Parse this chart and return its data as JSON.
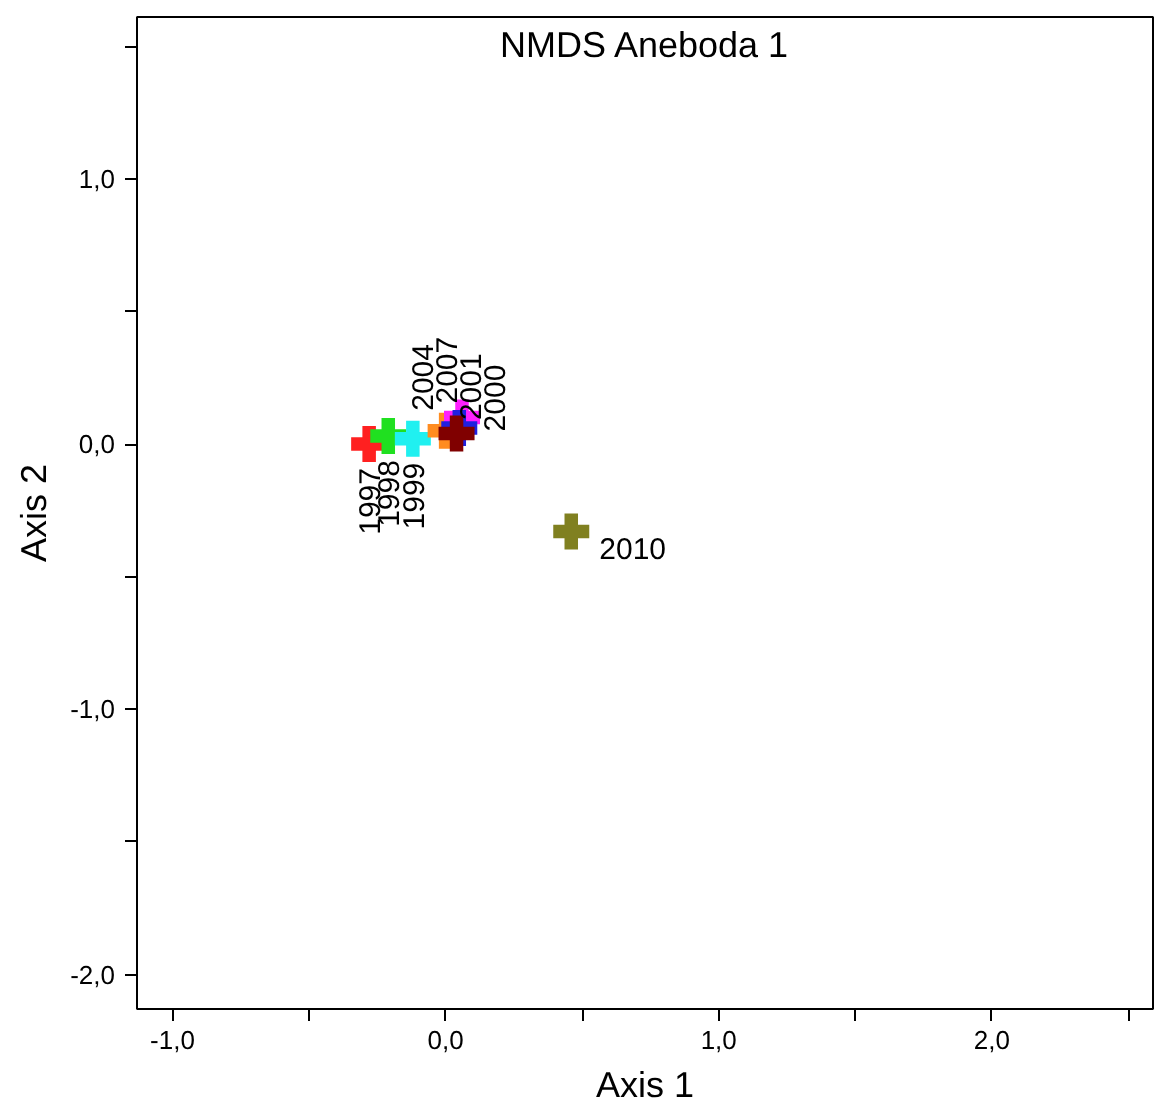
{
  "chart_data": {
    "type": "scatter",
    "title": "NMDS Aneboda 1",
    "xlabel": "Axis 1",
    "ylabel": "Axis 2",
    "xlim": [
      -1.13,
      2.59
    ],
    "ylim": [
      -2.13,
      1.61
    ],
    "xticks": [
      {
        "value": -1.0,
        "label": "-1,0"
      },
      {
        "value": -0.5,
        "label": null
      },
      {
        "value": 0.0,
        "label": "0,0"
      },
      {
        "value": 0.5,
        "label": null
      },
      {
        "value": 1.0,
        "label": "1,0"
      },
      {
        "value": 1.5,
        "label": null
      },
      {
        "value": 2.0,
        "label": "2,0"
      },
      {
        "value": 2.5,
        "label": null
      }
    ],
    "yticks": [
      {
        "value": -2.0,
        "label": "-2,0"
      },
      {
        "value": -1.5,
        "label": null
      },
      {
        "value": -1.0,
        "label": "-1,0"
      },
      {
        "value": -0.5,
        "label": null
      },
      {
        "value": 0.0,
        "label": "0,0"
      },
      {
        "value": 0.5,
        "label": null
      },
      {
        "value": 1.0,
        "label": "1,0"
      },
      {
        "value": 1.5,
        "label": null
      }
    ],
    "grid": false,
    "marker": "cross",
    "series": [
      {
        "name": "1997",
        "color": "#ff2020",
        "x": [
          -0.28
        ],
        "values": [
          0.0
        ]
      },
      {
        "name": "1998",
        "color": "#20e020",
        "x": [
          -0.21
        ],
        "values": [
          0.03
        ]
      },
      {
        "name": "1999",
        "color": "#20f0f0",
        "x": [
          -0.12
        ],
        "values": [
          0.02
        ]
      },
      {
        "name": "2004",
        "color": "#ff8c20",
        "x": [
          0.0
        ],
        "values": [
          0.05
        ]
      },
      {
        "name": "2007",
        "color": "#ff20ff",
        "x": [
          0.06
        ],
        "values": [
          0.1
        ]
      },
      {
        "name": "2001",
        "color": "#2020e0",
        "x": [
          0.05
        ],
        "values": [
          0.06
        ]
      },
      {
        "name": "2000",
        "color": "#800000",
        "x": [
          0.04
        ],
        "values": [
          0.04
        ]
      },
      {
        "name": "2010",
        "color": "#808020",
        "x": [
          0.46
        ],
        "values": [
          -0.33
        ]
      }
    ]
  }
}
